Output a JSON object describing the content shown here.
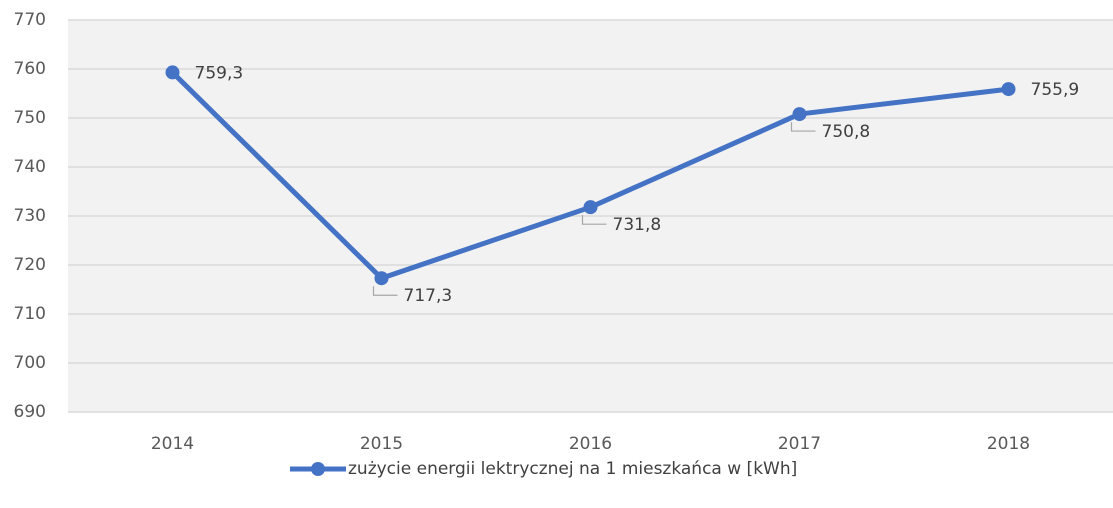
{
  "chart_data": {
    "type": "line",
    "categories": [
      "2014",
      "2015",
      "2016",
      "2017",
      "2018"
    ],
    "series": [
      {
        "name": "zużycie energii lektrycznej na 1 mieszkańca w [kWh]",
        "color": "#4472c4",
        "values": [
          759.3,
          717.3,
          731.8,
          750.8,
          755.9
        ],
        "value_labels": [
          "759,3",
          "717,3",
          "731,8",
          "750,8",
          "755,9"
        ]
      }
    ],
    "ylim": [
      690,
      770
    ],
    "yticks": [
      690,
      700,
      710,
      720,
      730,
      740,
      750,
      760,
      770
    ],
    "grid": true,
    "legend": "bottom"
  }
}
